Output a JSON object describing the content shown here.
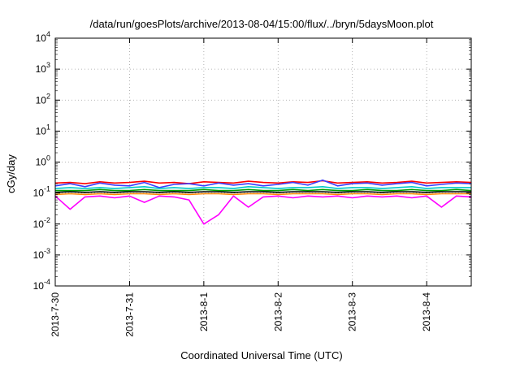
{
  "chart_data": {
    "type": "line",
    "title": "/data/run/goesPlots/archive/2013-08-04/15:00/flux/../bryn/5daysMoon.plot",
    "xlabel": "Coordinated Universal Time (UTC)",
    "ylabel": "cGy/day",
    "yscale": "log",
    "ylim": [
      0.0001,
      10000
    ],
    "xlim": [
      0,
      5.6
    ],
    "grid": true,
    "legend": "none",
    "y_ticks": [
      {
        "value": 0.0001,
        "base": "10",
        "exp": "-4"
      },
      {
        "value": 0.001,
        "base": "10",
        "exp": "-3"
      },
      {
        "value": 0.01,
        "base": "10",
        "exp": "-2"
      },
      {
        "value": 0.1,
        "base": "10",
        "exp": "-1"
      },
      {
        "value": 1,
        "base": "10",
        "exp": "0"
      },
      {
        "value": 10,
        "base": "10",
        "exp": "1"
      },
      {
        "value": 100,
        "base": "10",
        "exp": "2"
      },
      {
        "value": 1000,
        "base": "10",
        "exp": "3"
      },
      {
        "value": 10000,
        "base": "10",
        "exp": "4"
      }
    ],
    "x_ticks": [
      {
        "value": 0,
        "label": "2013-7-30"
      },
      {
        "value": 1,
        "label": "2013-7-31"
      },
      {
        "value": 2,
        "label": "2013-8-1"
      },
      {
        "value": 3,
        "label": "2013-8-2"
      },
      {
        "value": 4,
        "label": "2013-8-3"
      },
      {
        "value": 5,
        "label": "2013-8-4"
      }
    ],
    "x": [
      0,
      0.2,
      0.4,
      0.6,
      0.8,
      1.0,
      1.2,
      1.4,
      1.6,
      1.8,
      2.0,
      2.2,
      2.4,
      2.6,
      2.8,
      3.0,
      3.2,
      3.4,
      3.6,
      3.8,
      4.0,
      4.2,
      4.4,
      4.6,
      4.8,
      5.0,
      5.2,
      5.4,
      5.6
    ],
    "series": [
      {
        "color": "#ff0000",
        "values": [
          0.21,
          0.22,
          0.2,
          0.23,
          0.21,
          0.22,
          0.24,
          0.21,
          0.22,
          0.2,
          0.23,
          0.22,
          0.21,
          0.24,
          0.22,
          0.21,
          0.23,
          0.22,
          0.25,
          0.21,
          0.22,
          0.23,
          0.21,
          0.22,
          0.24,
          0.21,
          0.22,
          0.23,
          0.22
        ]
      },
      {
        "color": "#3c3cff",
        "values": [
          0.17,
          0.2,
          0.16,
          0.21,
          0.18,
          0.17,
          0.22,
          0.15,
          0.19,
          0.2,
          0.17,
          0.21,
          0.18,
          0.2,
          0.17,
          0.19,
          0.22,
          0.18,
          0.26,
          0.17,
          0.2,
          0.21,
          0.18,
          0.2,
          0.22,
          0.17,
          0.19,
          0.21,
          0.2
        ]
      },
      {
        "color": "#00c8c8",
        "values": [
          0.14,
          0.15,
          0.14,
          0.15,
          0.14,
          0.15,
          0.16,
          0.14,
          0.15,
          0.14,
          0.15,
          0.15,
          0.14,
          0.16,
          0.15,
          0.14,
          0.15,
          0.15,
          0.16,
          0.14,
          0.15,
          0.15,
          0.14,
          0.15,
          0.16,
          0.14,
          0.15,
          0.15,
          0.15
        ]
      },
      {
        "color": "#00a000",
        "values": [
          0.12,
          0.12,
          0.12,
          0.13,
          0.12,
          0.12,
          0.13,
          0.12,
          0.12,
          0.12,
          0.13,
          0.12,
          0.12,
          0.13,
          0.12,
          0.12,
          0.13,
          0.12,
          0.13,
          0.12,
          0.12,
          0.13,
          0.12,
          0.12,
          0.13,
          0.12,
          0.12,
          0.13,
          0.12
        ]
      },
      {
        "color": "#000000",
        "values": [
          0.105,
          0.11,
          0.105,
          0.11,
          0.105,
          0.11,
          0.11,
          0.105,
          0.11,
          0.105,
          0.11,
          0.11,
          0.105,
          0.11,
          0.11,
          0.105,
          0.11,
          0.11,
          0.11,
          0.105,
          0.11,
          0.11,
          0.105,
          0.11,
          0.11,
          0.105,
          0.11,
          0.11,
          0.11
        ]
      },
      {
        "color": "#ff8800",
        "values": [
          0.09,
          0.095,
          0.09,
          0.095,
          0.09,
          0.095,
          0.095,
          0.09,
          0.095,
          0.09,
          0.095,
          0.095,
          0.09,
          0.095,
          0.095,
          0.09,
          0.095,
          0.095,
          0.095,
          0.09,
          0.095,
          0.095,
          0.09,
          0.095,
          0.095,
          0.09,
          0.095,
          0.095,
          0.095
        ]
      },
      {
        "color": "#ff00ff",
        "values": [
          0.08,
          0.03,
          0.075,
          0.08,
          0.07,
          0.08,
          0.05,
          0.08,
          0.075,
          0.06,
          0.01,
          0.02,
          0.08,
          0.035,
          0.075,
          0.08,
          0.07,
          0.08,
          0.075,
          0.08,
          0.07,
          0.08,
          0.075,
          0.08,
          0.07,
          0.08,
          0.035,
          0.08,
          0.075
        ]
      }
    ]
  }
}
